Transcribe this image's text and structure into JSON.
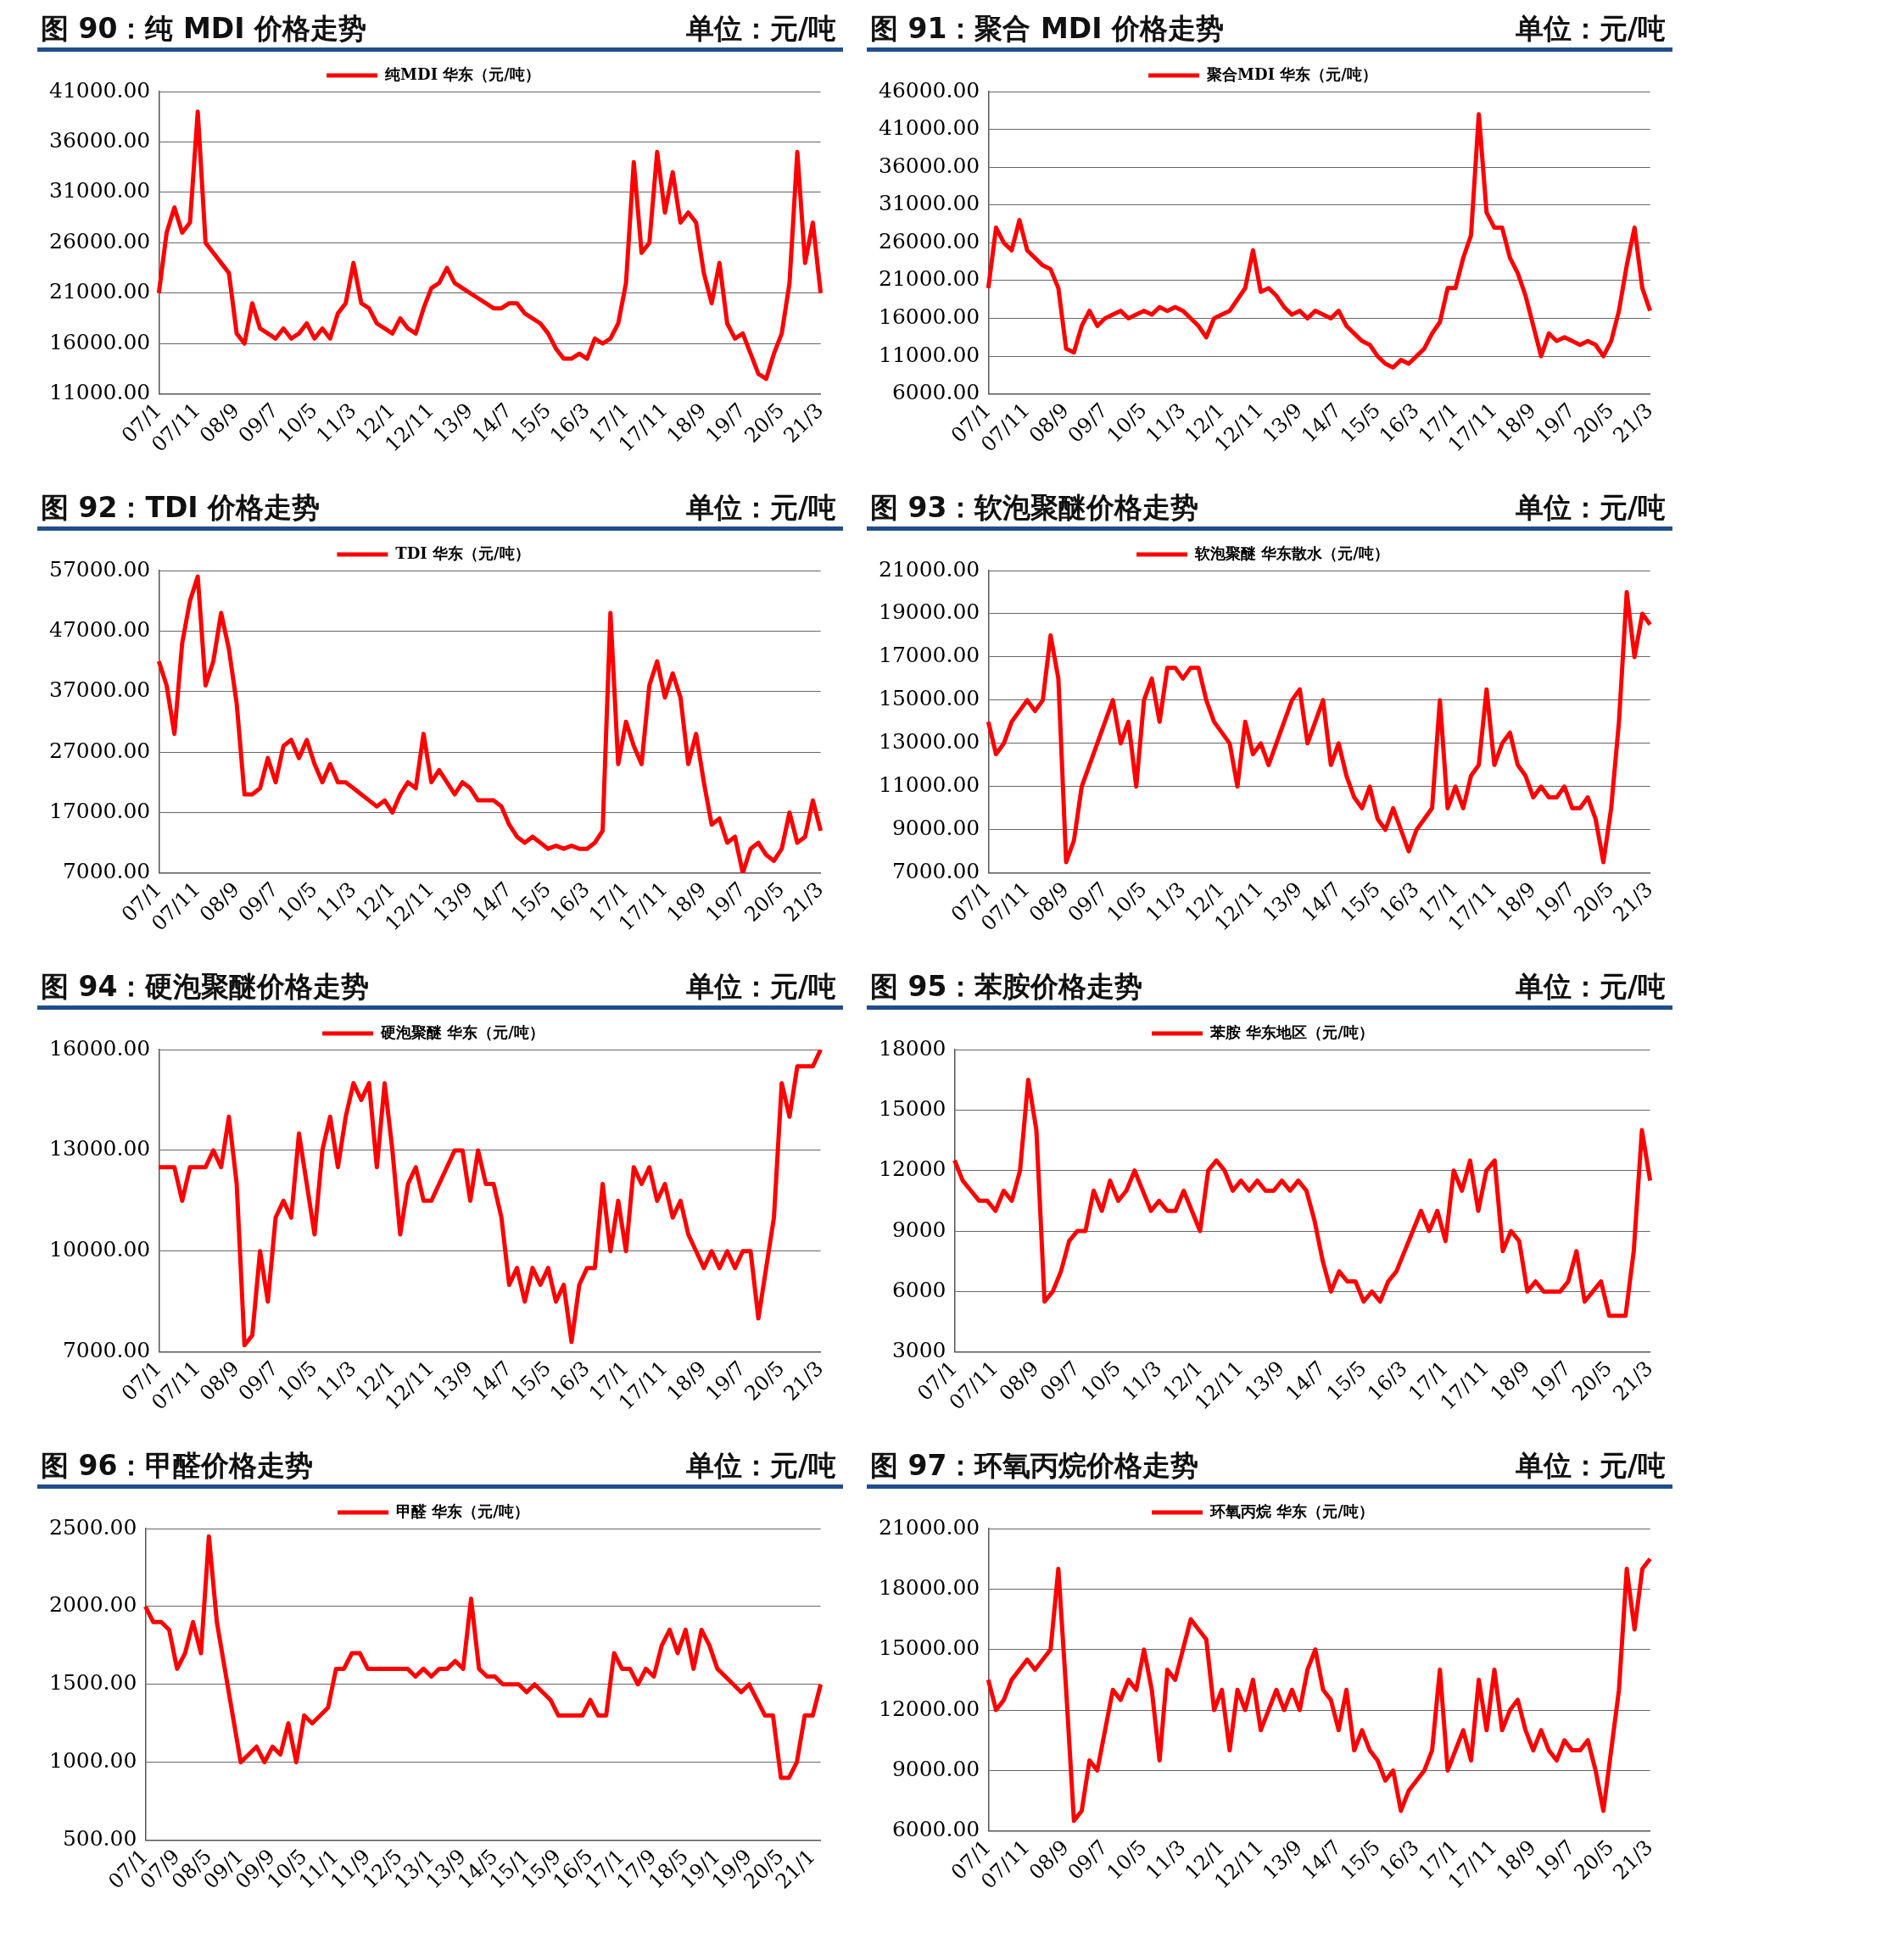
{
  "chart_data": [
    {
      "type": "line",
      "title": "图 90：纯 MDI 价格走势",
      "subtitle": "单位：元/吨",
      "grid": "y",
      "legend": "top",
      "marker": "none",
      "line_style": "solid",
      "categories": [
        "07/1",
        null,
        null,
        null,
        null,
        "07/11",
        null,
        null,
        null,
        null,
        "08/9",
        null,
        null,
        null,
        null,
        "09/7",
        null,
        null,
        null,
        null,
        "10/5",
        null,
        null,
        null,
        null,
        "11/3",
        null,
        null,
        null,
        null,
        "12/1",
        null,
        null,
        null,
        null,
        "12/11",
        null,
        null,
        null,
        null,
        "13/9",
        null,
        null,
        null,
        null,
        "14/7",
        null,
        null,
        null,
        null,
        "15/5",
        null,
        null,
        null,
        null,
        "16/3",
        null,
        null,
        null,
        null,
        "17/1",
        null,
        null,
        null,
        null,
        "17/11",
        null,
        null,
        null,
        null,
        "18/9",
        null,
        null,
        null,
        null,
        "19/7",
        null,
        null,
        null,
        null,
        "20/5",
        null,
        null,
        null,
        null,
        "21/3"
      ],
      "ylim": [
        11000,
        41000
      ],
      "yticks": [
        {
          "value": 11000,
          "label": "11000.00"
        },
        {
          "value": 16000,
          "label": "16000.00"
        },
        {
          "value": 21000,
          "label": "21000.00"
        },
        {
          "value": 26000,
          "label": "26000.00"
        },
        {
          "value": 31000,
          "label": "31000.00"
        },
        {
          "value": 36000,
          "label": "36000.00"
        },
        {
          "value": 41000,
          "label": "41000.00"
        }
      ],
      "series": [
        {
          "name": "纯MDI 华东（元/吨）",
          "color": "#ff0000",
          "values": [
            21000,
            27000,
            29500,
            27000,
            28000,
            39000,
            26000,
            25000,
            24000,
            23000,
            17000,
            16000,
            20000,
            17500,
            17000,
            16500,
            17500,
            16500,
            17000,
            18000,
            16500,
            17500,
            16500,
            19000,
            20000,
            24000,
            20000,
            19500,
            18000,
            17500,
            17000,
            18500,
            17500,
            17000,
            19500,
            21500,
            22000,
            23500,
            22000,
            21500,
            21000,
            20500,
            20000,
            19500,
            19500,
            20000,
            20000,
            19000,
            18500,
            18000,
            17000,
            15500,
            14500,
            14500,
            15000,
            14500,
            16500,
            16000,
            16500,
            18000,
            22000,
            34000,
            25000,
            26000,
            35000,
            29000,
            33000,
            28000,
            29000,
            28000,
            23000,
            20000,
            24000,
            18000,
            16500,
            17000,
            15000,
            13000,
            12500,
            15000,
            17000,
            22000,
            35000,
            24000,
            28000,
            21000
          ]
        }
      ]
    },
    {
      "type": "line",
      "title": "图 91：聚合 MDI 价格走势",
      "subtitle": "单位：元/吨",
      "grid": "y",
      "legend": "top",
      "marker": "none",
      "line_style": "solid",
      "categories": [
        "07/1",
        null,
        null,
        null,
        null,
        "07/11",
        null,
        null,
        null,
        null,
        "08/9",
        null,
        null,
        null,
        null,
        "09/7",
        null,
        null,
        null,
        null,
        "10/5",
        null,
        null,
        null,
        null,
        "11/3",
        null,
        null,
        null,
        null,
        "12/1",
        null,
        null,
        null,
        null,
        "12/11",
        null,
        null,
        null,
        null,
        "13/9",
        null,
        null,
        null,
        null,
        "14/7",
        null,
        null,
        null,
        null,
        "15/5",
        null,
        null,
        null,
        null,
        "16/3",
        null,
        null,
        null,
        null,
        "17/1",
        null,
        null,
        null,
        null,
        "17/11",
        null,
        null,
        null,
        null,
        "18/9",
        null,
        null,
        null,
        null,
        "19/7",
        null,
        null,
        null,
        null,
        "20/5",
        null,
        null,
        null,
        null,
        "21/3"
      ],
      "ylim": [
        6000,
        46000
      ],
      "yticks": [
        {
          "value": 6000,
          "label": "6000.00"
        },
        {
          "value": 11000,
          "label": "11000.00"
        },
        {
          "value": 16000,
          "label": "16000.00"
        },
        {
          "value": 21000,
          "label": "21000.00"
        },
        {
          "value": 26000,
          "label": "26000.00"
        },
        {
          "value": 31000,
          "label": "31000.00"
        },
        {
          "value": 36000,
          "label": "36000.00"
        },
        {
          "value": 41000,
          "label": "41000.00"
        },
        {
          "value": 46000,
          "label": "46000.00"
        }
      ],
      "series": [
        {
          "name": "聚合MDI 华东（元/吨）",
          "color": "#ff0000",
          "values": [
            20000,
            28000,
            26000,
            25000,
            29000,
            25000,
            24000,
            23000,
            22500,
            20000,
            12000,
            11500,
            15000,
            17000,
            15000,
            16000,
            16500,
            17000,
            16000,
            16500,
            17000,
            16500,
            17500,
            17000,
            17500,
            17000,
            16000,
            15000,
            13500,
            16000,
            16500,
            17000,
            18500,
            20000,
            25000,
            19500,
            20000,
            19000,
            17500,
            16500,
            17000,
            16000,
            17000,
            16500,
            16000,
            17000,
            15000,
            14000,
            13000,
            12500,
            11000,
            10000,
            9500,
            10500,
            10000,
            11000,
            12000,
            14000,
            15500,
            20000,
            20000,
            24000,
            27000,
            43000,
            30000,
            28000,
            28000,
            24000,
            22000,
            19000,
            15000,
            11000,
            14000,
            13000,
            13500,
            13000,
            12500,
            13000,
            12500,
            11000,
            13000,
            17000,
            23000,
            28000,
            20000,
            17000
          ]
        }
      ]
    },
    {
      "type": "line",
      "title": "图 92：TDI 价格走势",
      "subtitle": "单位：元/吨",
      "grid": "y",
      "legend": "top",
      "marker": "none",
      "line_style": "solid",
      "categories": [
        "07/1",
        null,
        null,
        null,
        null,
        "07/11",
        null,
        null,
        null,
        null,
        "08/9",
        null,
        null,
        null,
        null,
        "09/7",
        null,
        null,
        null,
        null,
        "10/5",
        null,
        null,
        null,
        null,
        "11/3",
        null,
        null,
        null,
        null,
        "12/1",
        null,
        null,
        null,
        null,
        "12/11",
        null,
        null,
        null,
        null,
        "13/9",
        null,
        null,
        null,
        null,
        "14/7",
        null,
        null,
        null,
        null,
        "15/5",
        null,
        null,
        null,
        null,
        "16/3",
        null,
        null,
        null,
        null,
        "17/1",
        null,
        null,
        null,
        null,
        "17/11",
        null,
        null,
        null,
        null,
        "18/9",
        null,
        null,
        null,
        null,
        "19/7",
        null,
        null,
        null,
        null,
        "20/5",
        null,
        null,
        null,
        null,
        "21/3"
      ],
      "ylim": [
        7000,
        57000
      ],
      "yticks": [
        {
          "value": 7000,
          "label": "7000.00"
        },
        {
          "value": 17000,
          "label": "17000.00"
        },
        {
          "value": 27000,
          "label": "27000.00"
        },
        {
          "value": 37000,
          "label": "37000.00"
        },
        {
          "value": 47000,
          "label": "47000.00"
        },
        {
          "value": 57000,
          "label": "57000.00"
        }
      ],
      "series": [
        {
          "name": "TDI 华东（元/吨）",
          "color": "#ff0000",
          "values": [
            42000,
            38000,
            30000,
            45000,
            52000,
            56000,
            38000,
            42000,
            50000,
            44000,
            35000,
            20000,
            20000,
            21000,
            26000,
            22000,
            28000,
            29000,
            26000,
            29000,
            25000,
            22000,
            25000,
            22000,
            22000,
            21000,
            20000,
            19000,
            18000,
            19000,
            17000,
            20000,
            22000,
            21000,
            30000,
            22000,
            24000,
            22000,
            20000,
            22000,
            21000,
            19000,
            19000,
            19000,
            18000,
            15000,
            13000,
            12000,
            13000,
            12000,
            11000,
            11500,
            11000,
            11500,
            11000,
            11000,
            12000,
            14000,
            50000,
            25000,
            32000,
            28000,
            25000,
            38000,
            42000,
            36000,
            40000,
            36000,
            25000,
            30000,
            22000,
            15000,
            16000,
            12000,
            13000,
            7000,
            11000,
            12000,
            10000,
            9000,
            11000,
            17000,
            12000,
            13000,
            19000,
            14000
          ]
        }
      ]
    },
    {
      "type": "line",
      "title": "图 93：软泡聚醚价格走势",
      "subtitle": "单位：元/吨",
      "grid": "y",
      "legend": "top",
      "marker": "none",
      "line_style": "solid",
      "categories": [
        "07/1",
        null,
        null,
        null,
        null,
        "07/11",
        null,
        null,
        null,
        null,
        "08/9",
        null,
        null,
        null,
        null,
        "09/7",
        null,
        null,
        null,
        null,
        "10/5",
        null,
        null,
        null,
        null,
        "11/3",
        null,
        null,
        null,
        null,
        "12/1",
        null,
        null,
        null,
        null,
        "12/11",
        null,
        null,
        null,
        null,
        "13/9",
        null,
        null,
        null,
        null,
        "14/7",
        null,
        null,
        null,
        null,
        "15/5",
        null,
        null,
        null,
        null,
        "16/3",
        null,
        null,
        null,
        null,
        "17/1",
        null,
        null,
        null,
        null,
        "17/11",
        null,
        null,
        null,
        null,
        "18/9",
        null,
        null,
        null,
        null,
        "19/7",
        null,
        null,
        null,
        null,
        "20/5",
        null,
        null,
        null,
        null,
        "21/3"
      ],
      "ylim": [
        7000,
        21000
      ],
      "yticks": [
        {
          "value": 7000,
          "label": "7000.00"
        },
        {
          "value": 9000,
          "label": "9000.00"
        },
        {
          "value": 11000,
          "label": "11000.00"
        },
        {
          "value": 13000,
          "label": "13000.00"
        },
        {
          "value": 15000,
          "label": "15000.00"
        },
        {
          "value": 17000,
          "label": "17000.00"
        },
        {
          "value": 19000,
          "label": "19000.00"
        },
        {
          "value": 21000,
          "label": "21000.00"
        }
      ],
      "series": [
        {
          "name": "软泡聚醚 华东散水（元/吨）",
          "color": "#ff0000",
          "values": [
            14000,
            12500,
            13000,
            14000,
            14500,
            15000,
            14500,
            15000,
            18000,
            16000,
            7500,
            8500,
            11000,
            12000,
            13000,
            14000,
            15000,
            13000,
            14000,
            11000,
            15000,
            16000,
            14000,
            16500,
            16500,
            16000,
            16500,
            16500,
            15000,
            14000,
            13500,
            13000,
            11000,
            14000,
            12500,
            13000,
            12000,
            13000,
            14000,
            15000,
            15500,
            13000,
            14000,
            15000,
            12000,
            13000,
            11500,
            10500,
            10000,
            11000,
            9500,
            9000,
            10000,
            9000,
            8000,
            9000,
            9500,
            10000,
            15000,
            10000,
            11000,
            10000,
            11500,
            12000,
            15500,
            12000,
            13000,
            13500,
            12000,
            11500,
            10500,
            11000,
            10500,
            10500,
            11000,
            10000,
            10000,
            10500,
            9500,
            7500,
            10000,
            14000,
            20000,
            17000,
            19000,
            18500
          ]
        }
      ]
    },
    {
      "type": "line",
      "title": "图 94：硬泡聚醚价格走势",
      "subtitle": "单位：元/吨",
      "grid": "y",
      "legend": "top",
      "marker": "none",
      "line_style": "solid",
      "categories": [
        "07/1",
        null,
        null,
        null,
        null,
        "07/11",
        null,
        null,
        null,
        null,
        "08/9",
        null,
        null,
        null,
        null,
        "09/7",
        null,
        null,
        null,
        null,
        "10/5",
        null,
        null,
        null,
        null,
        "11/3",
        null,
        null,
        null,
        null,
        "12/1",
        null,
        null,
        null,
        null,
        "12/11",
        null,
        null,
        null,
        null,
        "13/9",
        null,
        null,
        null,
        null,
        "14/7",
        null,
        null,
        null,
        null,
        "15/5",
        null,
        null,
        null,
        null,
        "16/3",
        null,
        null,
        null,
        null,
        "17/1",
        null,
        null,
        null,
        null,
        "17/11",
        null,
        null,
        null,
        null,
        "18/9",
        null,
        null,
        null,
        null,
        "19/7",
        null,
        null,
        null,
        null,
        "20/5",
        null,
        null,
        null,
        null,
        "21/3"
      ],
      "ylim": [
        7000,
        16000
      ],
      "yticks": [
        {
          "value": 7000,
          "label": "7000.00"
        },
        {
          "value": 10000,
          "label": "10000.00"
        },
        {
          "value": 13000,
          "label": "13000.00"
        },
        {
          "value": 16000,
          "label": "16000.00"
        }
      ],
      "series": [
        {
          "name": "硬泡聚醚 华东（元/吨）",
          "color": "#ff0000",
          "values": [
            12500,
            12500,
            12500,
            11500,
            12500,
            12500,
            12500,
            13000,
            12500,
            14000,
            12000,
            7200,
            7500,
            10000,
            8500,
            11000,
            11500,
            11000,
            13500,
            12000,
            10500,
            13000,
            14000,
            12500,
            14000,
            15000,
            14500,
            15000,
            12500,
            15000,
            13000,
            10500,
            12000,
            12500,
            11500,
            11500,
            12000,
            12500,
            13000,
            13000,
            11500,
            13000,
            12000,
            12000,
            11000,
            9000,
            9500,
            8500,
            9500,
            9000,
            9500,
            8500,
            9000,
            7300,
            9000,
            9500,
            9500,
            12000,
            10000,
            11500,
            10000,
            12500,
            12000,
            12500,
            11500,
            12000,
            11000,
            11500,
            10500,
            10000,
            9500,
            10000,
            9500,
            10000,
            9500,
            10000,
            10000,
            8000,
            9500,
            11000,
            15000,
            14000,
            15500,
            15500,
            15500,
            16000
          ]
        }
      ]
    },
    {
      "type": "line",
      "title": "图 95：苯胺价格走势",
      "subtitle": "单位：元/吨",
      "grid": "y",
      "legend": "top",
      "marker": "none",
      "line_style": "solid",
      "categories": [
        "07/1",
        null,
        null,
        null,
        null,
        "07/11",
        null,
        null,
        null,
        null,
        "08/9",
        null,
        null,
        null,
        null,
        "09/7",
        null,
        null,
        null,
        null,
        "10/5",
        null,
        null,
        null,
        null,
        "11/3",
        null,
        null,
        null,
        null,
        "12/1",
        null,
        null,
        null,
        null,
        "12/11",
        null,
        null,
        null,
        null,
        "13/9",
        null,
        null,
        null,
        null,
        "14/7",
        null,
        null,
        null,
        null,
        "15/5",
        null,
        null,
        null,
        null,
        "16/3",
        null,
        null,
        null,
        null,
        "17/1",
        null,
        null,
        null,
        null,
        "17/11",
        null,
        null,
        null,
        null,
        "18/9",
        null,
        null,
        null,
        null,
        "19/7",
        null,
        null,
        null,
        null,
        "20/5",
        null,
        null,
        null,
        null,
        "21/3"
      ],
      "ylim": [
        3000,
        18000
      ],
      "yticks": [
        3000,
        6000,
        9000,
        12000,
        15000,
        18000
      ],
      "series": [
        {
          "name": "苯胺 华东地区（元/吨）",
          "color": "#ff0000",
          "values": [
            12500,
            11500,
            11000,
            10500,
            10500,
            10000,
            11000,
            10500,
            12000,
            16500,
            14000,
            5500,
            6000,
            7000,
            8500,
            9000,
            9000,
            11000,
            10000,
            11500,
            10500,
            11000,
            12000,
            11000,
            10000,
            10500,
            10000,
            10000,
            11000,
            10000,
            9000,
            12000,
            12500,
            12000,
            11000,
            11500,
            11000,
            11500,
            11000,
            11000,
            11500,
            11000,
            11500,
            11000,
            9500,
            7500,
            6000,
            7000,
            6500,
            6500,
            5500,
            6000,
            5500,
            6500,
            7000,
            8000,
            9000,
            10000,
            9000,
            10000,
            8500,
            12000,
            11000,
            12500,
            10000,
            12000,
            12500,
            8000,
            9000,
            8500,
            6000,
            6500,
            6000,
            6000,
            6000,
            6500,
            8000,
            5500,
            6000,
            6500,
            4800,
            4800,
            4800,
            8000,
            14000,
            11500
          ]
        }
      ]
    },
    {
      "type": "line",
      "title": "图 96：甲醛价格走势",
      "subtitle": "单位：元/吨",
      "grid": "y",
      "legend": "top",
      "marker": "none",
      "line_style": "solid",
      "categories": [
        "07/1",
        null,
        null,
        null,
        "07/9",
        null,
        null,
        null,
        "08/5",
        null,
        null,
        null,
        "09/1",
        null,
        null,
        null,
        "09/9",
        null,
        null,
        null,
        "10/5",
        null,
        null,
        null,
        "11/1",
        null,
        null,
        null,
        "11/9",
        null,
        null,
        null,
        "12/5",
        null,
        null,
        null,
        "13/1",
        null,
        null,
        null,
        "13/9",
        null,
        null,
        null,
        "14/5",
        null,
        null,
        null,
        "15/1",
        null,
        null,
        null,
        "15/9",
        null,
        null,
        null,
        "16/5",
        null,
        null,
        null,
        "17/1",
        null,
        null,
        null,
        "17/9",
        null,
        null,
        null,
        "18/5",
        null,
        null,
        null,
        "19/1",
        null,
        null,
        null,
        "19/9",
        null,
        null,
        null,
        "20/5",
        null,
        null,
        null,
        "21/1",
        null
      ],
      "ylim": [
        500,
        2500
      ],
      "yticks": [
        {
          "value": 500,
          "label": "500.00"
        },
        {
          "value": 1000,
          "label": "1000.00"
        },
        {
          "value": 1500,
          "label": "1500.00"
        },
        {
          "value": 2000,
          "label": "2000.00"
        },
        {
          "value": 2500,
          "label": "2500.00"
        }
      ],
      "series": [
        {
          "name": "甲醛 华东（元/吨）",
          "color": "#ff0000",
          "values": [
            2000,
            1900,
            1900,
            1850,
            1600,
            1700,
            1900,
            1700,
            2450,
            1900,
            1600,
            1300,
            1000,
            1050,
            1100,
            1000,
            1100,
            1050,
            1250,
            1000,
            1300,
            1250,
            1300,
            1350,
            1600,
            1600,
            1700,
            1700,
            1600,
            1600,
            1600,
            1600,
            1600,
            1600,
            1550,
            1600,
            1550,
            1600,
            1600,
            1650,
            1600,
            2050,
            1600,
            1550,
            1550,
            1500,
            1500,
            1500,
            1450,
            1500,
            1450,
            1400,
            1300,
            1300,
            1300,
            1300,
            1400,
            1300,
            1300,
            1700,
            1600,
            1600,
            1500,
            1600,
            1550,
            1750,
            1850,
            1700,
            1850,
            1600,
            1850,
            1750,
            1600,
            1550,
            1500,
            1450,
            1500,
            1400,
            1300,
            1300,
            900,
            900,
            1000,
            1300,
            1300,
            1500
          ]
        }
      ]
    },
    {
      "type": "line",
      "title": "图 97：环氧丙烷价格走势",
      "subtitle": "单位：元/吨",
      "grid": "y",
      "legend": "top",
      "marker": "none",
      "line_style": "solid",
      "categories": [
        "07/1",
        null,
        null,
        null,
        null,
        "07/11",
        null,
        null,
        null,
        null,
        "08/9",
        null,
        null,
        null,
        null,
        "09/7",
        null,
        null,
        null,
        null,
        "10/5",
        null,
        null,
        null,
        null,
        "11/3",
        null,
        null,
        null,
        null,
        "12/1",
        null,
        null,
        null,
        null,
        "12/11",
        null,
        null,
        null,
        null,
        "13/9",
        null,
        null,
        null,
        null,
        "14/7",
        null,
        null,
        null,
        null,
        "15/5",
        null,
        null,
        null,
        null,
        "16/3",
        null,
        null,
        null,
        null,
        "17/1",
        null,
        null,
        null,
        null,
        "17/11",
        null,
        null,
        null,
        null,
        "18/9",
        null,
        null,
        null,
        null,
        "19/7",
        null,
        null,
        null,
        null,
        "20/5",
        null,
        null,
        null,
        null,
        "21/3"
      ],
      "ylim": [
        6000,
        21000
      ],
      "yticks": [
        {
          "value": 6000,
          "label": "6000.00"
        },
        {
          "value": 9000,
          "label": "9000.00"
        },
        {
          "value": 12000,
          "label": "12000.00"
        },
        {
          "value": 15000,
          "label": "15000.00"
        },
        {
          "value": 18000,
          "label": "18000.00"
        },
        {
          "value": 21000,
          "label": "21000.00"
        }
      ],
      "series": [
        {
          "name": "环氧丙烷 华东（元/吨）",
          "color": "#ff0000",
          "values": [
            13500,
            12000,
            12500,
            13500,
            14000,
            14500,
            14000,
            14500,
            15000,
            19000,
            13000,
            6500,
            7000,
            9500,
            9000,
            11000,
            13000,
            12500,
            13500,
            13000,
            15000,
            13000,
            9500,
            14000,
            13500,
            15000,
            16500,
            16000,
            15500,
            12000,
            13000,
            10000,
            13000,
            12000,
            13500,
            11000,
            12000,
            13000,
            12000,
            13000,
            12000,
            14000,
            15000,
            13000,
            12500,
            11000,
            13000,
            10000,
            11000,
            10000,
            9500,
            8500,
            9000,
            7000,
            8000,
            8500,
            9000,
            10000,
            14000,
            9000,
            10000,
            11000,
            9500,
            13500,
            11000,
            14000,
            11000,
            12000,
            12500,
            11000,
            10000,
            11000,
            10000,
            9500,
            10500,
            10000,
            10000,
            10500,
            9000,
            7000,
            10000,
            13000,
            19000,
            16000,
            19000,
            19500
          ]
        }
      ]
    }
  ]
}
